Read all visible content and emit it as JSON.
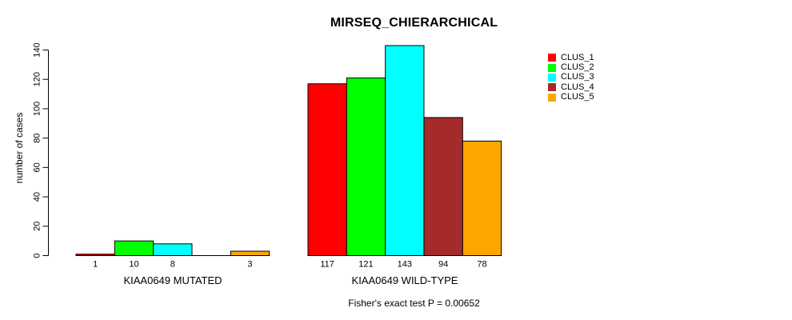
{
  "title": "MIRSEQ_CHIERARCHICAL",
  "footer": "Fisher's exact test P = 0.00652",
  "chart_data": {
    "type": "bar",
    "title": "MIRSEQ_CHIERARCHICAL",
    "ylabel": "number of cases",
    "xlabel": "",
    "ylim": [
      0,
      145
    ],
    "yticks": [
      0,
      20,
      40,
      60,
      80,
      100,
      120,
      140
    ],
    "grid": false,
    "legend_position": "right",
    "categories": [
      "KIAA0649 MUTATED",
      "KIAA0649 WILD-TYPE"
    ],
    "series": [
      {
        "name": "CLUS_1",
        "color": "#FF0000",
        "values": [
          1,
          117
        ]
      },
      {
        "name": "CLUS_2",
        "color": "#00FF00",
        "values": [
          10,
          121
        ]
      },
      {
        "name": "CLUS_3",
        "color": "#00FFFF",
        "values": [
          8,
          143
        ]
      },
      {
        "name": "CLUS_4",
        "color": "#A52A2A",
        "values": [
          0,
          94
        ]
      },
      {
        "name": "CLUS_5",
        "color": "#FFA500",
        "values": [
          3,
          78
        ]
      }
    ],
    "bar_labels": [
      [
        "1",
        "10",
        "8",
        "",
        "3"
      ],
      [
        "117",
        "121",
        "143",
        "94",
        "78"
      ]
    ],
    "annotation": "Fisher's exact test P = 0.00652",
    "axis_color": "#000000",
    "bar_border_color": "#000000"
  }
}
